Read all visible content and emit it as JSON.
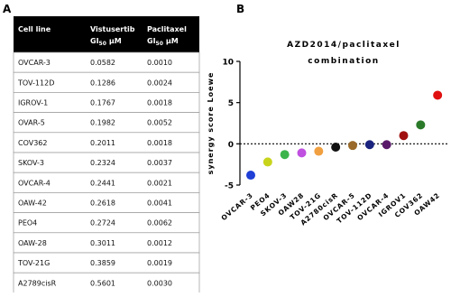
{
  "panels": {
    "a": "A",
    "b": "B"
  },
  "table": {
    "header": {
      "cell_line": "Cell line",
      "columns": [
        {
          "name": "Vistusertib",
          "sym": "GI",
          "sub": "50",
          "unit": "μM"
        },
        {
          "name": "Paclitaxel",
          "sym": "GI",
          "sub": "50",
          "unit": "μM"
        }
      ]
    },
    "rows": [
      [
        "OVCAR-3",
        "0.0582",
        "0.0010"
      ],
      [
        "TOV-112D",
        "0.1286",
        "0.0024"
      ],
      [
        "IGROV-1",
        "0.1767",
        "0.0018"
      ],
      [
        "OVAR-5",
        "0.1982",
        "0.0052"
      ],
      [
        "COV362",
        "0.2011",
        "0.0018"
      ],
      [
        "SKOV-3",
        "0.2324",
        "0.0037"
      ],
      [
        "OVCAR-4",
        "0.2441",
        "0.0021"
      ],
      [
        "OAW-42",
        "0.2618",
        "0.0041"
      ],
      [
        "PEO4",
        "0.2724",
        "0.0062"
      ],
      [
        "OAW-28",
        "0.3011",
        "0.0012"
      ],
      [
        "TOV-21G",
        "0.3859",
        "0.0019"
      ],
      [
        "A2789cisR",
        "0.5601",
        "0.0030"
      ]
    ]
  },
  "chart_data": {
    "type": "dot",
    "title": [
      "AZD2014/paclitaxel",
      "combination"
    ],
    "ylabel": "synergy score Loewe",
    "categories": [
      "OVCAR-3",
      "PEO4",
      "SKOV-3",
      "OAW28",
      "TOV-21G",
      "A2780cisR",
      "OVCAR-5",
      "TOV-112D",
      "OVCAR-4",
      "IGROV1",
      "COV362",
      "OAW42"
    ],
    "values": [
      -3.8,
      -2.2,
      -1.3,
      -1.1,
      -0.9,
      -0.4,
      -0.2,
      -0.1,
      -0.1,
      1.0,
      2.3,
      5.9
    ],
    "colors": [
      "#1f3fd6",
      "#c8d41b",
      "#3cb44b",
      "#c050e0",
      "#f0a040",
      "#111111",
      "#9a6a2a",
      "#1a237e",
      "#5a1a6a",
      "#a01010",
      "#2a7a2a",
      "#e01010"
    ],
    "ylim": [
      -5,
      10
    ],
    "yticks": [
      -5,
      0,
      5,
      10
    ],
    "hline": 0
  }
}
